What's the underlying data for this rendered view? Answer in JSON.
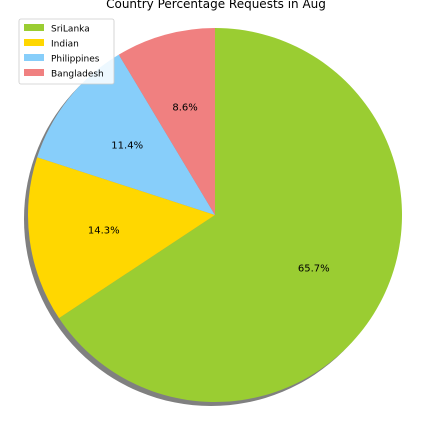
{
  "chart_data": {
    "type": "pie",
    "title": "Country Percentage Requests in Aug",
    "slices": [
      {
        "label": "SriLanka",
        "value": 65.7,
        "label_text": "65.7%",
        "color": "#9acd32"
      },
      {
        "label": "Indian",
        "value": 14.3,
        "label_text": "14.3%",
        "color": "#ffd700"
      },
      {
        "label": "Philippines",
        "value": 11.4,
        "label_text": "11.4%",
        "color": "#87cefa"
      },
      {
        "label": "Bangladesh",
        "value": 8.6,
        "label_text": "8.6%",
        "color": "#f08080"
      }
    ],
    "start_angle_deg": 90,
    "direction": "clockwise",
    "shadow": true,
    "legend_position": "upper-left"
  }
}
